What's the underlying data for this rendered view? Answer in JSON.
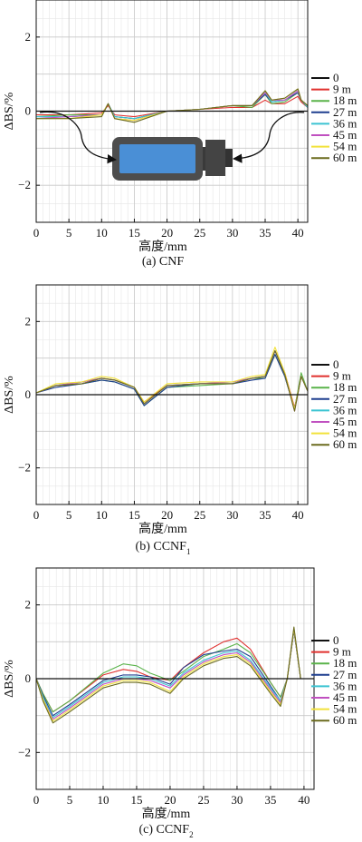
{
  "legend_labels": [
    "0",
    "9 m",
    "18 m",
    "27 m",
    "36 m",
    "45 m",
    "54 m",
    "60 m"
  ],
  "series_colors": [
    "#111111",
    "#e0302e",
    "#5ab34a",
    "#1f3f8f",
    "#3cc4d2",
    "#c050c0",
    "#f2e23a",
    "#6b6b1e"
  ],
  "xlabel": "高度/mm",
  "ylabel": "ΔBS/%",
  "x_ticks": [
    "0",
    "5",
    "10",
    "15",
    "20",
    "25",
    "30",
    "35",
    "40"
  ],
  "y_ticks": [
    "-2",
    "0",
    "2"
  ],
  "icon": "sample-vial-icon",
  "chart_data": [
    {
      "type": "line",
      "caption": "(a) CNF",
      "xlim": [
        0,
        41.5
      ],
      "ylim": [
        -3,
        3
      ],
      "grid": true,
      "legend_placement": "outside-right",
      "series": [
        {
          "name": "0",
          "x": [
            0,
            41.5
          ],
          "y": [
            0,
            0
          ]
        },
        {
          "name": "9 m",
          "x": [
            0,
            5,
            10,
            11,
            12,
            15,
            20,
            25,
            30,
            33,
            35,
            36,
            38,
            40,
            40.5,
            41.5
          ],
          "y": [
            -0.1,
            -0.1,
            -0.05,
            0.15,
            -0.1,
            -0.15,
            0,
            0.05,
            0.1,
            0.1,
            0.3,
            0.2,
            0.2,
            0.4,
            0.25,
            0.1
          ]
        },
        {
          "name": "18 m",
          "x": [
            0,
            5,
            10,
            11,
            12,
            15,
            20,
            25,
            30,
            33,
            35,
            36,
            38,
            40,
            40.5,
            41.5
          ],
          "y": [
            -0.15,
            -0.1,
            -0.1,
            0.2,
            -0.15,
            -0.2,
            0,
            0.05,
            0.15,
            0.1,
            0.45,
            0.2,
            0.25,
            0.5,
            0.3,
            0.1
          ]
        },
        {
          "name": "27 m",
          "x": [
            0,
            5,
            10,
            11,
            12,
            15,
            20,
            25,
            30,
            33,
            35,
            36,
            38,
            40,
            40.5,
            41.5
          ],
          "y": [
            -0.15,
            -0.15,
            -0.1,
            0.2,
            -0.15,
            -0.2,
            0,
            0.05,
            0.15,
            0.15,
            0.45,
            0.25,
            0.3,
            0.5,
            0.3,
            0.1
          ]
        },
        {
          "name": "36 m",
          "x": [
            0,
            5,
            10,
            11,
            12,
            15,
            20,
            25,
            30,
            33,
            35,
            36,
            38,
            40,
            40.5,
            41.5
          ],
          "y": [
            -0.15,
            -0.15,
            -0.1,
            0.2,
            -0.15,
            -0.2,
            0,
            0.05,
            0.15,
            0.15,
            0.5,
            0.25,
            0.3,
            0.55,
            0.3,
            0.1
          ]
        },
        {
          "name": "45 m",
          "x": [
            0,
            5,
            10,
            11,
            12,
            15,
            20,
            25,
            30,
            33,
            35,
            36,
            38,
            40,
            40.5,
            41.5
          ],
          "y": [
            -0.2,
            -0.15,
            -0.1,
            0.2,
            -0.2,
            -0.25,
            0,
            0.05,
            0.15,
            0.15,
            0.5,
            0.3,
            0.3,
            0.55,
            0.3,
            0.15
          ]
        },
        {
          "name": "54 m",
          "x": [
            0,
            5,
            10,
            11,
            12,
            15,
            20,
            25,
            30,
            33,
            35,
            36,
            38,
            40,
            40.5,
            41.5
          ],
          "y": [
            -0.2,
            -0.2,
            -0.1,
            0.2,
            -0.2,
            -0.25,
            0,
            0.05,
            0.15,
            0.15,
            0.55,
            0.3,
            0.35,
            0.6,
            0.3,
            0.15
          ]
        },
        {
          "name": "60 m",
          "x": [
            0,
            5,
            10,
            11,
            12,
            15,
            20,
            25,
            30,
            33,
            35,
            36,
            38,
            40,
            40.5,
            41.5
          ],
          "y": [
            -0.2,
            -0.2,
            -0.15,
            0.2,
            -0.2,
            -0.3,
            0,
            0.05,
            0.15,
            0.15,
            0.55,
            0.3,
            0.35,
            0.6,
            0.3,
            0.15
          ]
        }
      ]
    },
    {
      "type": "line",
      "caption": "(b) CCNF",
      "caption_subscript": "1",
      "xlim": [
        0,
        41.5
      ],
      "ylim": [
        -3,
        3
      ],
      "grid": true,
      "legend_placement": "outside-right",
      "series": [
        {
          "name": "0",
          "x": [
            0,
            41.5
          ],
          "y": [
            0,
            0
          ]
        },
        {
          "name": "9 m",
          "x": [
            0,
            3,
            7,
            10,
            12,
            15,
            16.5,
            20,
            25,
            30,
            33,
            35,
            36.5,
            38,
            39.5,
            40.5,
            41.5
          ],
          "y": [
            0.05,
            0.25,
            0.3,
            0.45,
            0.4,
            0.2,
            -0.2,
            0.25,
            0.3,
            0.3,
            0.45,
            0.5,
            1.2,
            0.6,
            -0.35,
            0.5,
            0.1
          ]
        },
        {
          "name": "18 m",
          "x": [
            0,
            3,
            7,
            10,
            12,
            15,
            16.5,
            20,
            25,
            30,
            33,
            35,
            36.5,
            38,
            39.5,
            40.5,
            41.5
          ],
          "y": [
            0.05,
            0.25,
            0.3,
            0.4,
            0.35,
            0.15,
            -0.3,
            0.2,
            0.25,
            0.3,
            0.45,
            0.45,
            1.1,
            0.5,
            -0.4,
            0.6,
            0.1
          ]
        },
        {
          "name": "27 m",
          "x": [
            0,
            3,
            7,
            10,
            12,
            15,
            16.5,
            20,
            25,
            30,
            33,
            35,
            36.5,
            38,
            39.5,
            40.5,
            41.5
          ],
          "y": [
            0.05,
            0.2,
            0.3,
            0.4,
            0.35,
            0.15,
            -0.3,
            0.2,
            0.3,
            0.3,
            0.4,
            0.45,
            1.1,
            0.5,
            -0.4,
            0.5,
            0.1
          ]
        },
        {
          "name": "36 m",
          "x": [
            0,
            3,
            7,
            10,
            12,
            15,
            16.5,
            20,
            25,
            30,
            33,
            35,
            36.5,
            38,
            39.5,
            40.5,
            41.5
          ],
          "y": [
            0.05,
            0.25,
            0.35,
            0.45,
            0.4,
            0.2,
            -0.25,
            0.25,
            0.3,
            0.35,
            0.45,
            0.5,
            1.2,
            0.55,
            -0.4,
            0.5,
            0.1
          ]
        },
        {
          "name": "45 m",
          "x": [
            0,
            3,
            7,
            10,
            12,
            15,
            16.5,
            20,
            25,
            30,
            33,
            35,
            36.5,
            38,
            39.5,
            40.5,
            41.5
          ],
          "y": [
            0.05,
            0.25,
            0.35,
            0.45,
            0.4,
            0.2,
            -0.25,
            0.25,
            0.3,
            0.35,
            0.45,
            0.5,
            1.2,
            0.55,
            -0.45,
            0.5,
            0.1
          ]
        },
        {
          "name": "54 m",
          "x": [
            0,
            3,
            7,
            10,
            12,
            15,
            16.5,
            20,
            25,
            30,
            33,
            35,
            36.5,
            38,
            39.5,
            40.5,
            41.5
          ],
          "y": [
            0.05,
            0.3,
            0.35,
            0.5,
            0.45,
            0.2,
            -0.2,
            0.3,
            0.35,
            0.35,
            0.5,
            0.55,
            1.3,
            0.6,
            -0.4,
            0.5,
            0.1
          ]
        },
        {
          "name": "60 m",
          "x": [
            0,
            3,
            7,
            10,
            12,
            15,
            16.5,
            20,
            25,
            30,
            33,
            35,
            36.5,
            38,
            39.5,
            40.5,
            41.5
          ],
          "y": [
            0.05,
            0.25,
            0.3,
            0.45,
            0.4,
            0.2,
            -0.25,
            0.25,
            0.3,
            0.3,
            0.45,
            0.5,
            1.2,
            0.55,
            -0.45,
            0.5,
            0.1
          ]
        }
      ]
    },
    {
      "type": "line",
      "caption": "(c) CCNF",
      "caption_subscript": "2",
      "xlim": [
        0,
        41.5
      ],
      "ylim": [
        -3,
        3
      ],
      "grid": true,
      "legend_placement": "outside-right",
      "series": [
        {
          "name": "0",
          "x": [
            0,
            41.5
          ],
          "y": [
            0,
            0
          ]
        },
        {
          "name": "9 m",
          "x": [
            0,
            1,
            2.5,
            5,
            10,
            13,
            15,
            17,
            20,
            22,
            25,
            28,
            30,
            32,
            35,
            36.5,
            37.5,
            38.5,
            39.5,
            41.5
          ],
          "y": [
            0,
            -0.4,
            -0.9,
            -0.6,
            0.1,
            0.25,
            0.2,
            0.05,
            -0.05,
            0.3,
            0.7,
            1.0,
            1.1,
            0.8,
            -0.1,
            -0.5,
            0,
            1.3,
            0,
            0
          ]
        },
        {
          "name": "18 m",
          "x": [
            0,
            1,
            2.5,
            5,
            10,
            13,
            15,
            17,
            20,
            22,
            25,
            28,
            30,
            32,
            35,
            36.5,
            37.5,
            38.5,
            39.5,
            41.5
          ],
          "y": [
            0,
            -0.4,
            -0.9,
            -0.6,
            0.15,
            0.4,
            0.35,
            0.15,
            -0.05,
            0.2,
            0.6,
            0.8,
            0.95,
            0.7,
            -0.1,
            -0.5,
            0,
            1.3,
            0,
            0
          ]
        },
        {
          "name": "27 m",
          "x": [
            0,
            1,
            2.5,
            5,
            10,
            13,
            15,
            17,
            20,
            22,
            25,
            28,
            30,
            32,
            35,
            36.5,
            37.5,
            38.5,
            39.5,
            41.5
          ],
          "y": [
            0,
            -0.45,
            -1.0,
            -0.7,
            -0.05,
            0.1,
            0.1,
            0.05,
            -0.15,
            0.3,
            0.65,
            0.75,
            0.8,
            0.6,
            -0.2,
            -0.6,
            0,
            1.3,
            0,
            0
          ]
        },
        {
          "name": "36 m",
          "x": [
            0,
            1,
            2.5,
            5,
            10,
            13,
            15,
            17,
            20,
            22,
            25,
            28,
            30,
            32,
            35,
            36.5,
            37.5,
            38.5,
            39.5,
            41.5
          ],
          "y": [
            0,
            -0.5,
            -1.05,
            -0.75,
            -0.1,
            0.05,
            0.05,
            0,
            -0.2,
            0.15,
            0.5,
            0.7,
            0.75,
            0.5,
            -0.25,
            -0.6,
            0,
            1.35,
            0,
            0
          ]
        },
        {
          "name": "45 m",
          "x": [
            0,
            1,
            2.5,
            5,
            10,
            13,
            15,
            17,
            20,
            22,
            25,
            28,
            30,
            32,
            35,
            36.5,
            37.5,
            38.5,
            39.5,
            41.5
          ],
          "y": [
            0,
            -0.55,
            -1.1,
            -0.8,
            -0.15,
            0,
            0,
            -0.05,
            -0.25,
            0.1,
            0.45,
            0.65,
            0.7,
            0.45,
            -0.3,
            -0.65,
            0,
            1.35,
            0,
            0
          ]
        },
        {
          "name": "54 m",
          "x": [
            0,
            1,
            2.5,
            5,
            10,
            13,
            15,
            17,
            20,
            22,
            25,
            28,
            30,
            32,
            35,
            36.5,
            37.5,
            38.5,
            39.5,
            41.5
          ],
          "y": [
            0,
            -0.55,
            -1.15,
            -0.85,
            -0.2,
            -0.05,
            -0.05,
            -0.1,
            -0.35,
            0.05,
            0.4,
            0.6,
            0.65,
            0.4,
            -0.35,
            -0.7,
            0,
            1.35,
            0,
            0
          ]
        },
        {
          "name": "60 m",
          "x": [
            0,
            1,
            2.5,
            5,
            10,
            13,
            15,
            17,
            20,
            22,
            25,
            28,
            30,
            32,
            35,
            36.5,
            37.5,
            38.5,
            39.5,
            41.5
          ],
          "y": [
            0,
            -0.6,
            -1.2,
            -0.9,
            -0.25,
            -0.1,
            -0.1,
            -0.15,
            -0.4,
            0,
            0.35,
            0.55,
            0.6,
            0.35,
            -0.4,
            -0.75,
            0,
            1.4,
            0,
            0
          ]
        }
      ]
    }
  ]
}
